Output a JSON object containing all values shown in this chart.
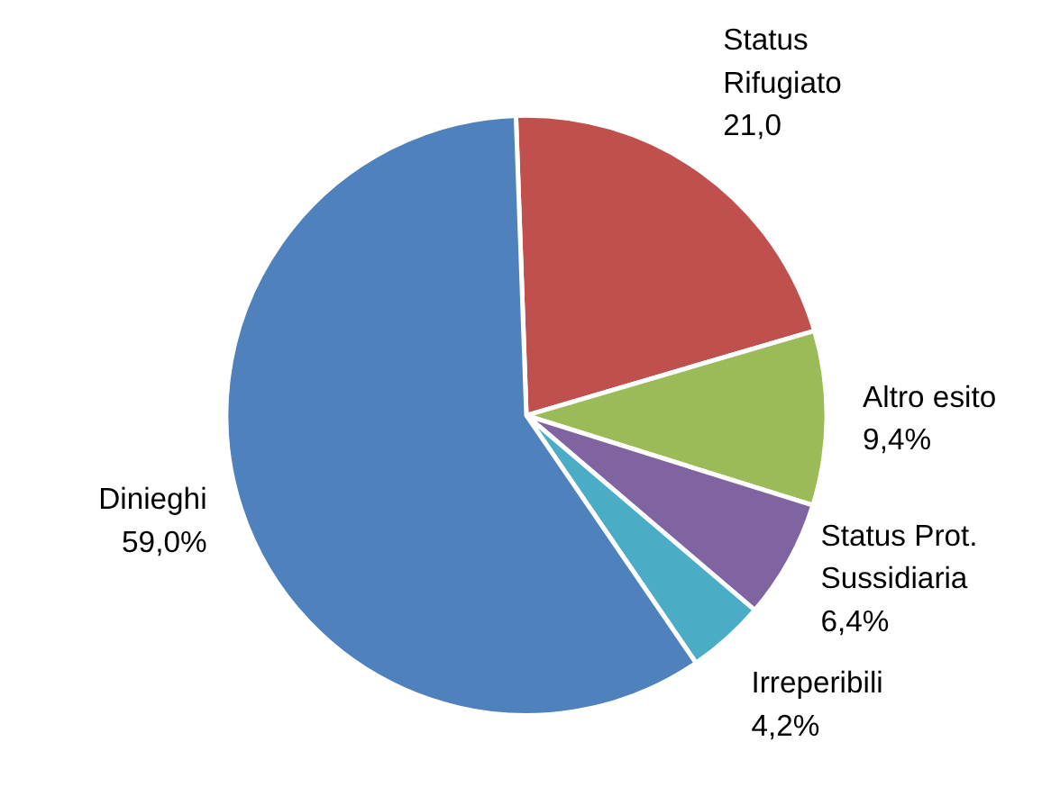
{
  "chart_data": {
    "type": "pie",
    "categories": [
      "Status\nRifugiato",
      "Altro esito",
      "Status Prot.\nSussidiaria",
      "Irreperibili",
      "Dinieghi"
    ],
    "values": [
      21.0,
      9.4,
      6.4,
      4.2,
      59.0
    ],
    "value_labels": [
      "21,0",
      "9,4%",
      "6,4%",
      "4,2%",
      "59,0%"
    ],
    "colors": [
      "#c0504d",
      "#9bbb59",
      "#8064a2",
      "#4bacc6",
      "#4f81bd"
    ]
  }
}
